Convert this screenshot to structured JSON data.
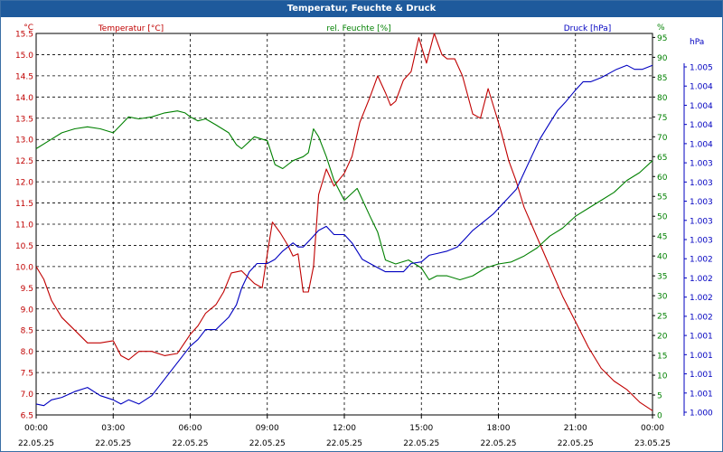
{
  "window": {
    "title": "Temperatur, Feuchte & Druck"
  },
  "colors": {
    "temperature": "#c00000",
    "humidity": "#008000",
    "pressure": "#0000c0",
    "grid": "#000000",
    "axis_text": "#000000"
  },
  "chart_data": {
    "type": "line",
    "title": "Temperatur, Feuchte & Druck",
    "grid": true,
    "xlabel": "",
    "x_ticks": [
      {
        "time": "00:00",
        "date": "22.05.25"
      },
      {
        "time": "03:00",
        "date": "22.05.25"
      },
      {
        "time": "06:00",
        "date": "22.05.25"
      },
      {
        "time": "09:00",
        "date": "22.05.25"
      },
      {
        "time": "12:00",
        "date": "22.05.25"
      },
      {
        "time": "15:00",
        "date": "22.05.25"
      },
      {
        "time": "18:00",
        "date": "22.05.25"
      },
      {
        "time": "21:00",
        "date": "22.05.25"
      },
      {
        "time": "00:00",
        "date": "23.05.25"
      }
    ],
    "x_range_hours": [
      0,
      24
    ],
    "axes": {
      "temperature": {
        "label": "Temperatur [°C]",
        "unit": "°C",
        "range": [
          6.5,
          15.5
        ],
        "ticks": [
          "6.5",
          "7.0",
          "7.5",
          "8.0",
          "8.5",
          "9.0",
          "9.5",
          "10.0",
          "10.5",
          "11.0",
          "11.5",
          "12.0",
          "12.5",
          "13.0",
          "13.5",
          "14.0",
          "14.5",
          "15.0",
          "15.5"
        ]
      },
      "humidity": {
        "label": "rel. Feuchte [%]",
        "unit": "%",
        "range": [
          0,
          96
        ],
        "ticks": [
          "0",
          "5",
          "10",
          "15",
          "20",
          "25",
          "30",
          "35",
          "40",
          "45",
          "50",
          "55",
          "60",
          "65",
          "70",
          "75",
          "80",
          "85",
          "90",
          "95"
        ]
      },
      "pressure": {
        "label": "Druck [hPa]",
        "unit": "hPa",
        "range": [
          1000.85,
          1005.15
        ],
        "ticks": [
          "1.000",
          "1.001",
          "1.001",
          "1.001",
          "1.001",
          "1.002",
          "1.002",
          "1.002",
          "1.002",
          "1.003",
          "1.003",
          "1.003",
          "1.003",
          "1.003",
          "1.004",
          "1.004",
          "1.004",
          "1.004",
          "1.005"
        ]
      }
    },
    "series": [
      {
        "name": "Temperatur [°C]",
        "axis": "temperature",
        "x": [
          0,
          0.3,
          0.6,
          1,
          1.5,
          2,
          2.5,
          3,
          3.3,
          3.6,
          4,
          4.5,
          5,
          5.5,
          6,
          6.3,
          6.6,
          7,
          7.3,
          7.6,
          8,
          8.5,
          8.8,
          9,
          9.2,
          9.5,
          9.8,
          10,
          10.2,
          10.4,
          10.6,
          10.8,
          11,
          11.3,
          11.6,
          12,
          12.3,
          12.6,
          13,
          13.3,
          13.6,
          13.8,
          14,
          14.3,
          14.6,
          14.9,
          15.2,
          15.5,
          15.8,
          16,
          16.3,
          16.6,
          17,
          17.3,
          17.6,
          17.9,
          18.1,
          18.4,
          18.7,
          19,
          19.5,
          20,
          20.5,
          21,
          21.5,
          22,
          22.5,
          23,
          23.5,
          24
        ],
        "y": [
          10.0,
          9.7,
          9.2,
          8.8,
          8.5,
          8.2,
          8.2,
          8.25,
          7.9,
          7.8,
          8.0,
          8.0,
          7.9,
          7.95,
          8.4,
          8.6,
          8.9,
          9.1,
          9.4,
          9.85,
          9.9,
          9.6,
          9.5,
          10.3,
          11.05,
          10.8,
          10.5,
          10.25,
          10.3,
          9.4,
          9.4,
          10.0,
          11.7,
          12.3,
          11.9,
          12.2,
          12.6,
          13.4,
          14.0,
          14.5,
          14.1,
          13.8,
          13.9,
          14.4,
          14.6,
          15.4,
          14.8,
          15.5,
          15.0,
          14.9,
          14.9,
          14.5,
          13.6,
          13.5,
          14.2,
          13.6,
          13.2,
          12.5,
          12.0,
          11.4,
          10.7,
          10.0,
          9.3,
          8.7,
          8.1,
          7.6,
          7.3,
          7.1,
          6.8,
          6.6
        ]
      },
      {
        "name": "rel. Feuchte [%]",
        "axis": "humidity",
        "x": [
          0,
          0.5,
          1,
          1.5,
          2,
          2.5,
          3,
          3.3,
          3.6,
          4,
          4.5,
          5,
          5.5,
          5.8,
          6,
          6.3,
          6.6,
          7,
          7.5,
          7.8,
          8,
          8.5,
          9,
          9.3,
          9.6,
          10,
          10.4,
          10.6,
          10.8,
          11,
          11.3,
          11.6,
          12,
          12.5,
          13,
          13.3,
          13.6,
          14,
          14.5,
          15,
          15.3,
          15.6,
          16,
          16.5,
          17,
          17.5,
          18,
          18.5,
          19,
          19.5,
          20,
          20.5,
          21,
          21.5,
          22,
          22.5,
          23,
          23.5,
          24
        ],
        "y": [
          67,
          69,
          71,
          72,
          72.5,
          72,
          71,
          73,
          75,
          74.5,
          75,
          76,
          76.5,
          76,
          75,
          74,
          74.5,
          73,
          71,
          68,
          67,
          70,
          69,
          63,
          62,
          64,
          65,
          66,
          72,
          70,
          65,
          59,
          54,
          57,
          50,
          46,
          39,
          38,
          39,
          37,
          34,
          35,
          35,
          34,
          35,
          37,
          38,
          38.5,
          40,
          42,
          45,
          47,
          50,
          52,
          54,
          56,
          59,
          61,
          64
        ]
      },
      {
        "name": "Druck [hPa]",
        "axis": "pressure",
        "x": [
          0,
          0.3,
          0.6,
          1,
          1.5,
          2,
          2.5,
          3,
          3.3,
          3.6,
          4,
          4.5,
          5,
          5.5,
          6,
          6.3,
          6.6,
          7,
          7.5,
          7.8,
          8,
          8.3,
          8.6,
          9,
          9.3,
          9.6,
          10,
          10.2,
          10.4,
          10.7,
          11,
          11.3,
          11.6,
          12,
          12.3,
          12.5,
          12.7,
          13,
          13.3,
          13.6,
          14,
          14.3,
          14.6,
          15,
          15.3,
          15.6,
          16,
          16.4,
          16.7,
          17,
          17.4,
          17.8,
          18.1,
          18.4,
          18.7,
          19,
          19.3,
          19.6,
          20,
          20.3,
          20.6,
          21,
          21.3,
          21.6,
          22,
          22.3,
          22.6,
          23,
          23.3,
          23.6,
          24
        ],
        "y": [
          1001.0,
          1000.98,
          1001.05,
          1001.08,
          1001.15,
          1001.2,
          1001.1,
          1001.05,
          1001.0,
          1001.05,
          1001.0,
          1001.1,
          1001.3,
          1001.5,
          1001.7,
          1001.78,
          1001.9,
          1001.9,
          1002.05,
          1002.2,
          1002.4,
          1002.6,
          1002.7,
          1002.7,
          1002.75,
          1002.85,
          1002.95,
          1002.9,
          1002.9,
          1003.0,
          1003.1,
          1003.15,
          1003.05,
          1003.05,
          1002.95,
          1002.85,
          1002.75,
          1002.7,
          1002.65,
          1002.6,
          1002.6,
          1002.6,
          1002.7,
          1002.72,
          1002.8,
          1002.82,
          1002.85,
          1002.9,
          1003.0,
          1003.1,
          1003.2,
          1003.3,
          1003.4,
          1003.5,
          1003.6,
          1003.8,
          1004.0,
          1004.2,
          1004.4,
          1004.55,
          1004.65,
          1004.8,
          1004.9,
          1004.9,
          1004.95,
          1005.0,
          1005.05,
          1005.1,
          1005.05,
          1005.05,
          1005.1
        ]
      }
    ]
  }
}
